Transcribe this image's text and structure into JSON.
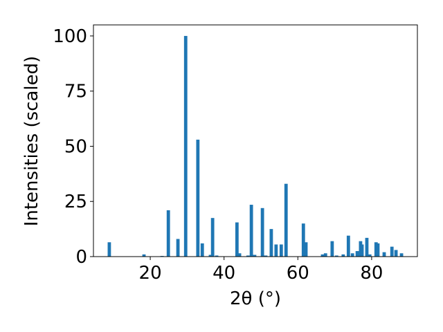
{
  "chart_data": {
    "type": "bar",
    "x_label": "2θ (°)",
    "y_label": "Intensities (scaled)",
    "x": [
      8.9,
      18.3,
      23.2,
      24.9,
      27.5,
      29.6,
      32.9,
      34.1,
      36.3,
      36.9,
      38.0,
      43.5,
      44.2,
      46.5,
      47.4,
      48.3,
      50.4,
      51.3,
      52.8,
      54.1,
      55.5,
      56.8,
      61.5,
      62.2,
      66.7,
      67.5,
      69.3,
      70.5,
      72.3,
      73.7,
      74.8,
      76.1,
      77.0,
      77.4,
      78.7,
      79.5,
      81.2,
      81.7,
      83.4,
      85.5,
      86.6,
      88.1
    ],
    "values": [
      6.5,
      1,
      0.3,
      21,
      8,
      100,
      53,
      6,
      0.8,
      17.5,
      0.5,
      15.5,
      1.5,
      0.5,
      23.5,
      0.8,
      22,
      0.5,
      12.5,
      5.5,
      5.5,
      33,
      15,
      6.5,
      1,
      1.5,
      7,
      0.5,
      1,
      9.5,
      1.5,
      2.5,
      7,
      5.5,
      8.5,
      1,
      6.5,
      6,
      2,
      4.5,
      3,
      1.5
    ],
    "color": "#1f77b4",
    "xlim": [
      4.6,
      92.4
    ],
    "xticks": [
      20,
      40,
      60,
      80
    ],
    "ylim": [
      0,
      105
    ],
    "yticks": [
      0,
      25,
      50,
      75,
      100
    ]
  }
}
